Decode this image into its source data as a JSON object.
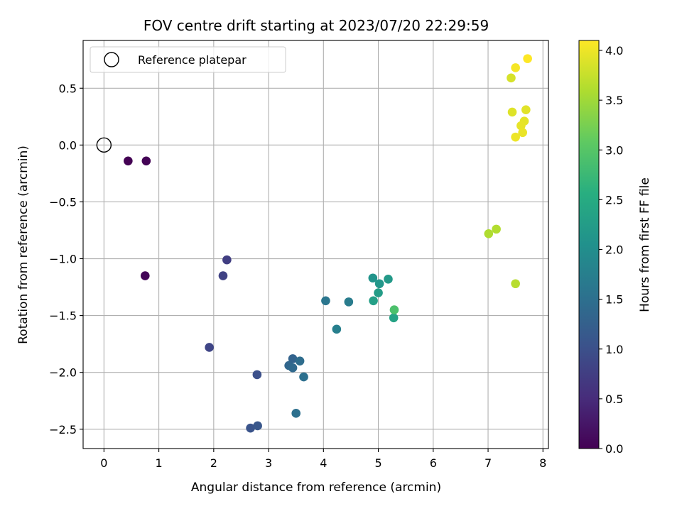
{
  "chart_data": {
    "type": "scatter",
    "title": "FOV centre drift starting at 2023/07/20 22:29:59",
    "xlabel": "Angular distance from reference (arcmin)",
    "ylabel": "Rotation from reference (arcmin)",
    "xlim": [
      -0.38,
      8.1
    ],
    "ylim": [
      -2.67,
      0.92
    ],
    "xticks": [
      0,
      1,
      2,
      3,
      4,
      5,
      6,
      7,
      8
    ],
    "xtick_labels": [
      "0",
      "1",
      "2",
      "3",
      "4",
      "5",
      "6",
      "7",
      "8"
    ],
    "yticks": [
      0.5,
      0.0,
      -0.5,
      -1.0,
      -1.5,
      -2.0,
      -2.5
    ],
    "ytick_labels": [
      "0.5",
      "0.0",
      "−0.5",
      "−1.0",
      "−1.5",
      "−2.0",
      "−2.5"
    ],
    "grid": true,
    "legend": {
      "placement": "top-left",
      "entries": [
        "Reference platepar"
      ]
    },
    "reference_point": {
      "x": 0.0,
      "y": 0.0,
      "label": "Reference platepar"
    },
    "colorbar": {
      "label": "Hours from first FF file",
      "colormap": "viridis",
      "range": [
        0.0,
        4.1
      ],
      "ticks": [
        0.0,
        0.5,
        1.0,
        1.5,
        2.0,
        2.5,
        3.0,
        3.5,
        4.0
      ],
      "tick_labels": [
        "0.0",
        "0.5",
        "1.0",
        "1.5",
        "2.0",
        "2.5",
        "3.0",
        "3.5",
        "4.0"
      ]
    },
    "points": [
      {
        "x": 0.44,
        "y": -0.14,
        "c": 0.0
      },
      {
        "x": 0.77,
        "y": -0.14,
        "c": 0.02
      },
      {
        "x": 0.75,
        "y": -1.15,
        "c": 0.05
      },
      {
        "x": 2.24,
        "y": -1.01,
        "c": 0.75
      },
      {
        "x": 2.17,
        "y": -1.15,
        "c": 0.8
      },
      {
        "x": 1.92,
        "y": -1.78,
        "c": 0.85
      },
      {
        "x": 2.79,
        "y": -2.02,
        "c": 1.0
      },
      {
        "x": 2.67,
        "y": -2.49,
        "c": 1.05
      },
      {
        "x": 2.8,
        "y": -2.47,
        "c": 1.1
      },
      {
        "x": 3.44,
        "y": -1.88,
        "c": 1.3
      },
      {
        "x": 3.37,
        "y": -1.94,
        "c": 1.35
      },
      {
        "x": 3.44,
        "y": -1.96,
        "c": 1.4
      },
      {
        "x": 3.57,
        "y": -1.9,
        "c": 1.45
      },
      {
        "x": 3.64,
        "y": -2.04,
        "c": 1.5
      },
      {
        "x": 3.5,
        "y": -2.36,
        "c": 1.5
      },
      {
        "x": 4.04,
        "y": -1.37,
        "c": 1.6
      },
      {
        "x": 4.46,
        "y": -1.38,
        "c": 1.7
      },
      {
        "x": 4.24,
        "y": -1.62,
        "c": 1.75
      },
      {
        "x": 4.9,
        "y": -1.17,
        "c": 2.1
      },
      {
        "x": 5.02,
        "y": -1.22,
        "c": 2.15
      },
      {
        "x": 5.18,
        "y": -1.18,
        "c": 2.2
      },
      {
        "x": 5.0,
        "y": -1.3,
        "c": 2.25
      },
      {
        "x": 4.91,
        "y": -1.37,
        "c": 2.3
      },
      {
        "x": 5.28,
        "y": -1.52,
        "c": 2.35
      },
      {
        "x": 5.29,
        "y": -1.45,
        "c": 2.9
      },
      {
        "x": 7.01,
        "y": -0.78,
        "c": 3.6
      },
      {
        "x": 7.15,
        "y": -0.74,
        "c": 3.62
      },
      {
        "x": 7.5,
        "y": -1.22,
        "c": 3.65
      },
      {
        "x": 7.42,
        "y": 0.59,
        "c": 3.85
      },
      {
        "x": 7.44,
        "y": 0.29,
        "c": 3.9
      },
      {
        "x": 7.69,
        "y": 0.31,
        "c": 3.92
      },
      {
        "x": 7.66,
        "y": 0.21,
        "c": 3.94
      },
      {
        "x": 7.6,
        "y": 0.17,
        "c": 3.96
      },
      {
        "x": 7.63,
        "y": 0.11,
        "c": 3.98
      },
      {
        "x": 7.5,
        "y": 0.07,
        "c": 4.0
      },
      {
        "x": 7.5,
        "y": 0.68,
        "c": 4.05
      },
      {
        "x": 7.72,
        "y": 0.76,
        "c": 4.1
      }
    ]
  }
}
